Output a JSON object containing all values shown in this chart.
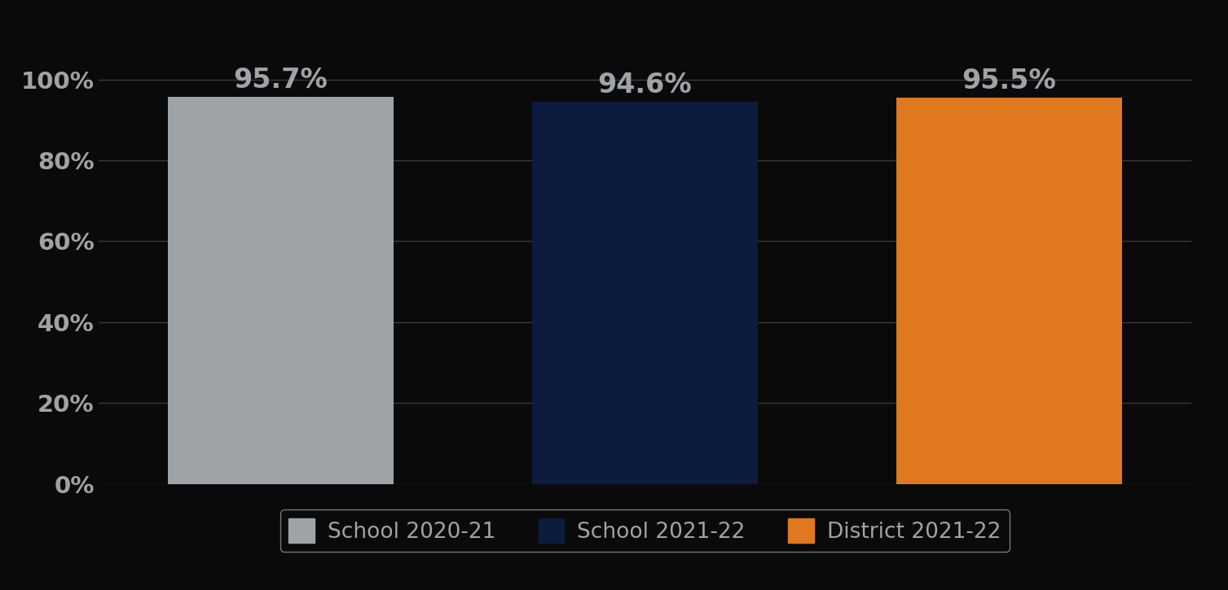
{
  "categories": [
    "School 2020-21",
    "School 2021-22",
    "District 2021-22"
  ],
  "values": [
    95.7,
    94.6,
    95.5
  ],
  "bar_colors": [
    "#9EA3A8",
    "#0D1B3E",
    "#E07820"
  ],
  "label_color": "#9EA3A8",
  "background_color": "#0a0a0a",
  "axis_text_color": "#9EA3A8",
  "grid_color": "#3a3a3a",
  "ylim": [
    0,
    100
  ],
  "yticks": [
    0,
    20,
    40,
    60,
    80,
    100
  ],
  "ytick_labels": [
    "0%",
    "20%",
    "40%",
    "60%",
    "80%",
    "100%"
  ],
  "bar_label_fontsize": 24,
  "tick_fontsize": 21,
  "legend_fontsize": 19,
  "legend_box_color": "#0a0a0a",
  "legend_edge_color": "#777777"
}
